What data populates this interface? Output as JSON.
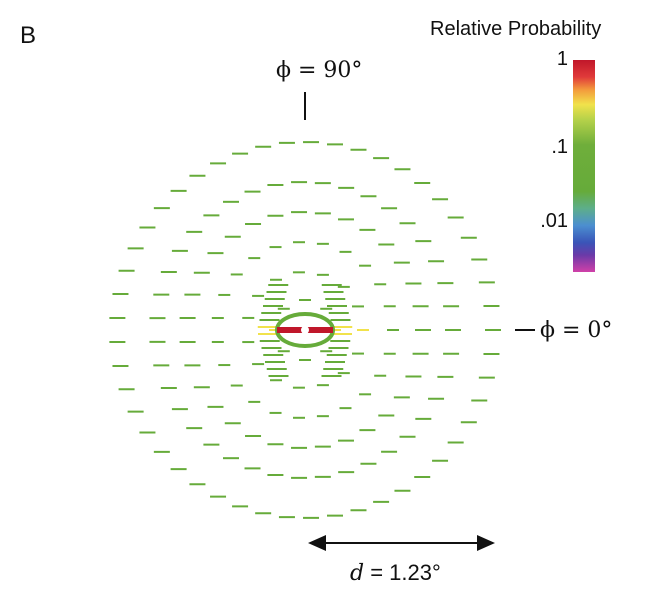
{
  "panel_label": "B",
  "legend": {
    "title": "Relative Probability",
    "ticks": [
      "1",
      ".1",
      ".01"
    ],
    "colors": [
      "#c0172a",
      "#f1e24b",
      "#66ab3a",
      "#4c8fd0",
      "#6a3aa8",
      "#d040a8"
    ]
  },
  "annotations": {
    "phi_90": "ϕ = 90°",
    "phi_0": "ϕ = 0°",
    "distance_symbol": "d",
    "distance_value": " = 1.23°"
  },
  "rings": {
    "count": 7,
    "dash_color": "#66ab3a",
    "center_highlight_color": "#c0172a",
    "near_horizontal_color": "#f1e24b"
  }
}
